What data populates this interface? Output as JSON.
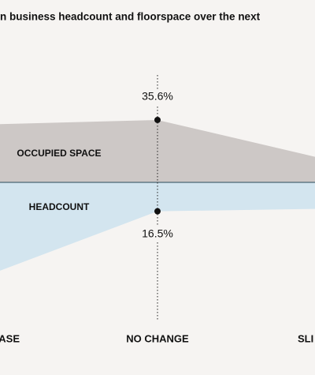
{
  "chart_data": {
    "type": "mirrored-area",
    "title": "n business headcount and floorspace over the next",
    "categories": [
      "ASE",
      "NO CHANGE",
      "SLI"
    ],
    "series": [
      {
        "name": "OCCUPIED SPACE",
        "color": "#cdc8c6",
        "values": [
          33,
          35.6,
          12.5
        ],
        "value_labels": [
          null,
          "35.6%",
          null
        ]
      },
      {
        "name": "HEADCOUNT",
        "color": "#d3e5ef",
        "values": [
          53.8,
          16.5,
          15
        ],
        "value_labels": [
          null,
          "16.5%",
          null
        ]
      }
    ]
  }
}
